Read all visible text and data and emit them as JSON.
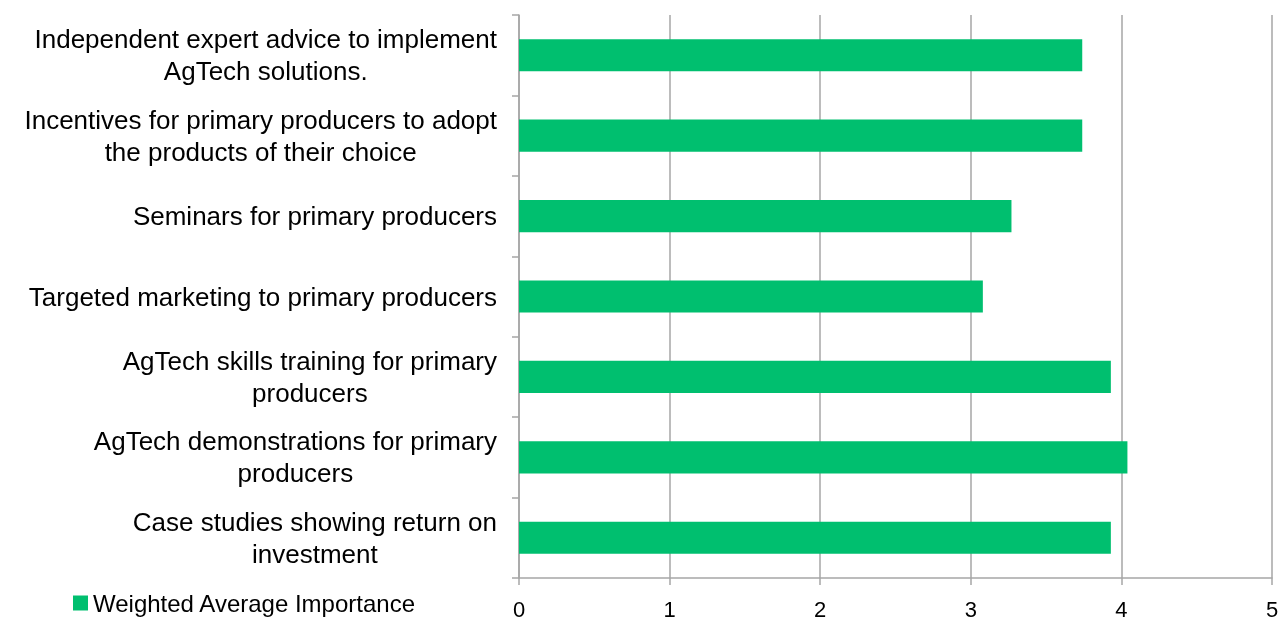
{
  "chart_data": {
    "type": "bar",
    "orientation": "horizontal",
    "categories": [
      "Independent expert advice to implement AgTech solutions.",
      "Incentives for primary producers to adopt the products of their choice",
      "Seminars for primary producers",
      "Targeted marketing to primary producers",
      "AgTech skills training for primary producers",
      "AgTech demonstrations for primary producers",
      "Case studies showing return on investment"
    ],
    "series": [
      {
        "name": "Weighted Average Importance",
        "color": "#00bf6f",
        "values": [
          3.74,
          3.74,
          3.27,
          3.08,
          3.93,
          4.04,
          3.93
        ]
      }
    ],
    "xlim": [
      0,
      5
    ],
    "xticks": [
      0,
      1,
      2,
      3,
      4,
      5
    ],
    "grid": "x",
    "legend": "bottom left"
  }
}
